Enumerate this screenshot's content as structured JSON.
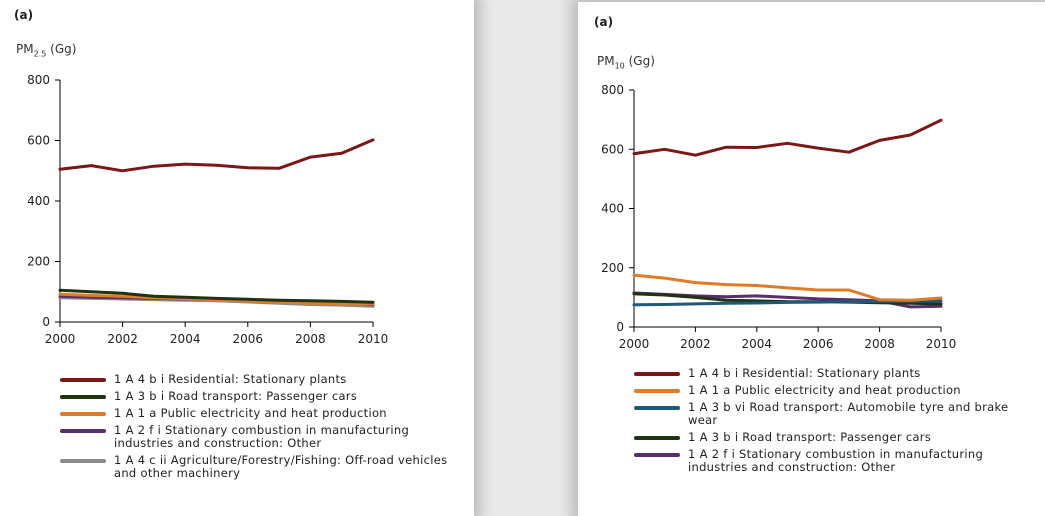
{
  "chart_data": [
    {
      "type": "line",
      "panel_tag": "(a)",
      "ylabel": "PM",
      "ylabel_sub": "2.5",
      "ylabel_unit": "(Gg)",
      "ylim": [
        0,
        800
      ],
      "yticks": [
        0,
        200,
        400,
        600,
        800
      ],
      "x": [
        2000,
        2001,
        2002,
        2003,
        2004,
        2005,
        2006,
        2007,
        2008,
        2009,
        2010
      ],
      "xlim": [
        2000,
        2010
      ],
      "xticks": [
        2000,
        2002,
        2004,
        2006,
        2008,
        2010
      ],
      "grid": false,
      "legend_position": "bottom",
      "series": [
        {
          "name": "1 A 4 b i Residential: Stationary plants",
          "color": "#7b1717",
          "values": [
            505,
            517,
            500,
            515,
            522,
            518,
            510,
            508,
            545,
            558,
            602
          ]
        },
        {
          "name": "1 A 3 b i Road transport: Passenger cars",
          "color": "#1f3311",
          "values": [
            105,
            100,
            95,
            85,
            82,
            78,
            75,
            72,
            70,
            68,
            65
          ]
        },
        {
          "name": "1 A 1 a Public electricity and heat production",
          "color": "#e07b2a",
          "values": [
            92,
            88,
            85,
            80,
            77,
            73,
            70,
            65,
            62,
            60,
            60
          ]
        },
        {
          "name": "1 A 2 f i Stationary combustion in manufacturing industries and construction: Other",
          "color": "#5a2d6e",
          "values": [
            85,
            82,
            80,
            78,
            76,
            74,
            72,
            70,
            68,
            64,
            58
          ]
        },
        {
          "name": "1 A 4 c ii Agriculture/Forestry/Fishing: Off-road vehicles and other machinery",
          "color": "#8a8a8a",
          "values": [
            80,
            78,
            76,
            74,
            72,
            70,
            66,
            62,
            58,
            56,
            52
          ]
        }
      ]
    },
    {
      "type": "line",
      "panel_tag": "(a)",
      "ylabel": "PM",
      "ylabel_sub": "10",
      "ylabel_unit": "(Gg)",
      "ylim": [
        0,
        800
      ],
      "yticks": [
        0,
        200,
        400,
        600,
        800
      ],
      "x": [
        2000,
        2001,
        2002,
        2003,
        2004,
        2005,
        2006,
        2007,
        2008,
        2009,
        2010
      ],
      "xlim": [
        2000,
        2010
      ],
      "xticks": [
        2000,
        2002,
        2004,
        2006,
        2008,
        2010
      ],
      "grid": false,
      "legend_position": "bottom",
      "series": [
        {
          "name": "1 A 4 b i Residential: Stationary plants",
          "color": "#7b1717",
          "values": [
            585,
            600,
            580,
            607,
            606,
            620,
            604,
            590,
            630,
            648,
            698
          ]
        },
        {
          "name": "1 A 1 a Public electricity and heat production",
          "color": "#e07b2a",
          "values": [
            175,
            165,
            150,
            143,
            140,
            132,
            125,
            125,
            92,
            90,
            98
          ]
        },
        {
          "name": "1 A 3 b vi Road transport: Automobile tyre and brake wear",
          "color": "#1e5a78",
          "values": [
            75,
            76,
            78,
            80,
            81,
            83,
            84,
            85,
            86,
            87,
            88
          ]
        },
        {
          "name": "1 A 3 b i Road transport: Passenger cars",
          "color": "#1f3311",
          "values": [
            112,
            108,
            100,
            90,
            88,
            85,
            85,
            84,
            82,
            80,
            78
          ]
        },
        {
          "name": "1 A 2 f i Stationary combustion in manufacturing industries and construction: Other",
          "color": "#5a2d6e",
          "values": [
            115,
            110,
            105,
            102,
            105,
            100,
            95,
            92,
            88,
            68,
            70
          ]
        }
      ]
    }
  ]
}
